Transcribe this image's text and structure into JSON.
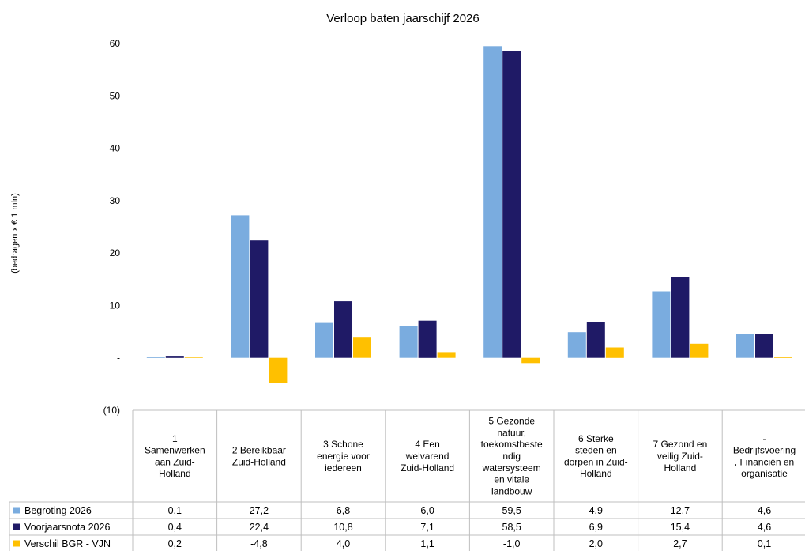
{
  "chart_data": {
    "type": "bar",
    "title": "Verloop baten jaarschijf 2026",
    "ylabel": "(bedragen x € 1 mln)",
    "ylim": [
      -10,
      60
    ],
    "yticks": [
      {
        "value": 60,
        "label": "60"
      },
      {
        "value": 50,
        "label": "50"
      },
      {
        "value": 40,
        "label": "40"
      },
      {
        "value": 30,
        "label": "30"
      },
      {
        "value": 20,
        "label": "20"
      },
      {
        "value": 10,
        "label": "10"
      },
      {
        "value": 0,
        "label": "-"
      },
      {
        "value": -10,
        "label": "(10)"
      }
    ],
    "grid": false,
    "legend": "bottom-left (data table)",
    "categories": [
      [
        "1",
        "Samenwerken",
        "aan Zuid-",
        "Holland"
      ],
      [
        "2 Bereikbaar",
        "Zuid-Holland"
      ],
      [
        "3 Schone",
        "energie voor",
        "iedereen"
      ],
      [
        "4 Een",
        "welvarend",
        "Zuid-Holland"
      ],
      [
        "5 Gezonde",
        "natuur,",
        "toekomstbeste",
        "ndig",
        "watersysteem",
        "en vitale",
        "landbouw"
      ],
      [
        "6 Sterke",
        "steden en",
        "dorpen in Zuid-",
        "Holland"
      ],
      [
        "7 Gezond en",
        "veilig Zuid-",
        "Holland"
      ],
      [
        "-",
        "Bedrijfsvoering",
        ", Financiën en",
        "organisatie"
      ]
    ],
    "series": [
      {
        "name": "Begroting 2026",
        "color": "#7aacdf",
        "values": [
          0.1,
          27.2,
          6.8,
          6.0,
          59.5,
          4.9,
          12.7,
          4.6
        ],
        "labels": [
          "0,1",
          "27,2",
          "6,8",
          "6,0",
          "59,5",
          "4,9",
          "12,7",
          "4,6"
        ]
      },
      {
        "name": "Voorjaarsnota 2026",
        "color": "#1f1a66",
        "values": [
          0.4,
          22.4,
          10.8,
          7.1,
          58.5,
          6.9,
          15.4,
          4.6
        ],
        "labels": [
          "0,4",
          "22,4",
          "10,8",
          "7,1",
          "58,5",
          "6,9",
          "15,4",
          "4,6"
        ]
      },
      {
        "name": "Verschil BGR - VJN",
        "color": "#ffc000",
        "values": [
          0.2,
          -4.8,
          4.0,
          1.1,
          -1.0,
          2.0,
          2.7,
          0.1
        ],
        "labels": [
          "0,2",
          "-4,8",
          "4,0",
          "1,1",
          "-1,0",
          "2,0",
          "2,7",
          "0,1"
        ]
      }
    ]
  }
}
